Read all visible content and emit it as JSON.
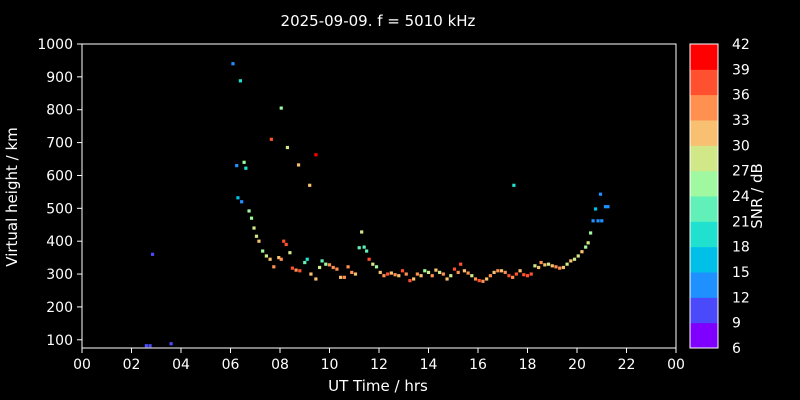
{
  "chart_data": {
    "type": "scatter",
    "title": "2025-09-09. f = 5010 kHz",
    "xlabel": "UT Time / hrs",
    "ylabel": "Virtual height / km",
    "colorbar_label": "SNR / dB",
    "xlim": [
      0,
      24
    ],
    "ylim": [
      75,
      1000
    ],
    "x_ticks": [
      "00",
      "02",
      "04",
      "06",
      "08",
      "10",
      "12",
      "14",
      "16",
      "18",
      "20",
      "22",
      "00"
    ],
    "y_ticks": [
      "100",
      "200",
      "300",
      "400",
      "500",
      "600",
      "700",
      "800",
      "900",
      "1000"
    ],
    "colorbar_ticks": [
      "6",
      "9",
      "12",
      "15",
      "18",
      "21",
      "24",
      "27",
      "30",
      "33",
      "36",
      "39",
      "42"
    ],
    "colorbar_colors": [
      "#8000ff",
      "#4a4afb",
      "#1e90ff",
      "#00c0e8",
      "#20e0d0",
      "#60f0b8",
      "#a0f8a0",
      "#d0e888",
      "#f8c070",
      "#ff9050",
      "#ff5030",
      "#ff0000"
    ],
    "grid": false,
    "points": [
      [
        2.6,
        82,
        9
      ],
      [
        2.75,
        82,
        9
      ],
      [
        3.6,
        88,
        9
      ],
      [
        2.85,
        360,
        9
      ],
      [
        6.1,
        940,
        13
      ],
      [
        6.25,
        630,
        12
      ],
      [
        6.4,
        888,
        20
      ],
      [
        6.55,
        640,
        25
      ],
      [
        6.62,
        622,
        19
      ],
      [
        6.3,
        532,
        15
      ],
      [
        6.45,
        520,
        14
      ],
      [
        6.75,
        492,
        24
      ],
      [
        6.85,
        470,
        24
      ],
      [
        6.95,
        440,
        27
      ],
      [
        7.05,
        415,
        28
      ],
      [
        7.15,
        400,
        30
      ],
      [
        7.3,
        370,
        26
      ],
      [
        7.45,
        355,
        28
      ],
      [
        7.6,
        345,
        31
      ],
      [
        7.75,
        322,
        34
      ],
      [
        7.65,
        710,
        37
      ],
      [
        8.05,
        805,
        26
      ],
      [
        8.3,
        685,
        27
      ],
      [
        8.75,
        632,
        30
      ],
      [
        9.2,
        570,
        31
      ],
      [
        9.45,
        663,
        42
      ],
      [
        8.15,
        400,
        36
      ],
      [
        8.25,
        390,
        36
      ],
      [
        8.4,
        365,
        27
      ],
      [
        7.95,
        350,
        31
      ],
      [
        8.05,
        345,
        33
      ],
      [
        8.5,
        318,
        37
      ],
      [
        8.65,
        312,
        34
      ],
      [
        8.8,
        310,
        38
      ],
      [
        9.0,
        335,
        21
      ],
      [
        9.1,
        345,
        19
      ],
      [
        9.25,
        300,
        31
      ],
      [
        9.45,
        285,
        30
      ],
      [
        9.6,
        320,
        29
      ],
      [
        9.7,
        340,
        22
      ],
      [
        9.85,
        330,
        26
      ],
      [
        10.0,
        328,
        33
      ],
      [
        10.15,
        320,
        35
      ],
      [
        10.3,
        315,
        33
      ],
      [
        10.45,
        290,
        30
      ],
      [
        10.6,
        290,
        34
      ],
      [
        10.75,
        322,
        35
      ],
      [
        10.9,
        305,
        33
      ],
      [
        11.05,
        300,
        31
      ],
      [
        11.2,
        380,
        22
      ],
      [
        11.3,
        428,
        29
      ],
      [
        11.4,
        382,
        21
      ],
      [
        11.5,
        370,
        22
      ],
      [
        11.6,
        345,
        36
      ],
      [
        11.75,
        330,
        28
      ],
      [
        11.9,
        322,
        24
      ],
      [
        12.05,
        305,
        30
      ],
      [
        12.2,
        295,
        35
      ],
      [
        12.35,
        300,
        38
      ],
      [
        12.5,
        303,
        32
      ],
      [
        12.65,
        298,
        33
      ],
      [
        12.8,
        295,
        31
      ],
      [
        12.95,
        310,
        36
      ],
      [
        13.1,
        300,
        33
      ],
      [
        13.25,
        280,
        37
      ],
      [
        13.4,
        285,
        30
      ],
      [
        13.55,
        300,
        34
      ],
      [
        13.7,
        295,
        32
      ],
      [
        13.85,
        310,
        26
      ],
      [
        14.0,
        305,
        29
      ],
      [
        14.15,
        295,
        35
      ],
      [
        14.3,
        312,
        30
      ],
      [
        14.45,
        305,
        28
      ],
      [
        14.6,
        300,
        33
      ],
      [
        14.75,
        285,
        31
      ],
      [
        14.9,
        295,
        28
      ],
      [
        15.05,
        315,
        36
      ],
      [
        15.2,
        305,
        34
      ],
      [
        15.3,
        330,
        37
      ],
      [
        15.45,
        310,
        31
      ],
      [
        15.6,
        303,
        33
      ],
      [
        15.75,
        295,
        29
      ],
      [
        15.9,
        285,
        34
      ],
      [
        16.05,
        280,
        36
      ],
      [
        16.2,
        278,
        35
      ],
      [
        16.35,
        285,
        32
      ],
      [
        16.5,
        295,
        33
      ],
      [
        16.65,
        305,
        31
      ],
      [
        16.8,
        310,
        35
      ],
      [
        16.95,
        310,
        30
      ],
      [
        17.1,
        305,
        33
      ],
      [
        17.25,
        295,
        36
      ],
      [
        17.4,
        290,
        35
      ],
      [
        17.55,
        300,
        37
      ],
      [
        17.7,
        310,
        32
      ],
      [
        17.85,
        298,
        36
      ],
      [
        18.0,
        295,
        38
      ],
      [
        18.15,
        300,
        37
      ],
      [
        18.3,
        325,
        29
      ],
      [
        18.45,
        320,
        30
      ],
      [
        18.55,
        335,
        34
      ],
      [
        18.7,
        328,
        30
      ],
      [
        18.85,
        330,
        27
      ],
      [
        19.0,
        325,
        31
      ],
      [
        19.15,
        322,
        35
      ],
      [
        19.3,
        318,
        34
      ],
      [
        19.45,
        320,
        30
      ],
      [
        19.6,
        330,
        29
      ],
      [
        19.75,
        340,
        30
      ],
      [
        19.9,
        345,
        29
      ],
      [
        20.05,
        355,
        28
      ],
      [
        20.2,
        368,
        30
      ],
      [
        20.35,
        382,
        26
      ],
      [
        20.45,
        395,
        27
      ],
      [
        20.55,
        425,
        26
      ],
      [
        20.65,
        462,
        12
      ],
      [
        20.75,
        498,
        17
      ],
      [
        20.85,
        462,
        12
      ],
      [
        20.95,
        543,
        12
      ],
      [
        21.0,
        462,
        12
      ],
      [
        21.15,
        505,
        12
      ],
      [
        21.25,
        505,
        12
      ],
      [
        17.45,
        570,
        19
      ]
    ]
  }
}
